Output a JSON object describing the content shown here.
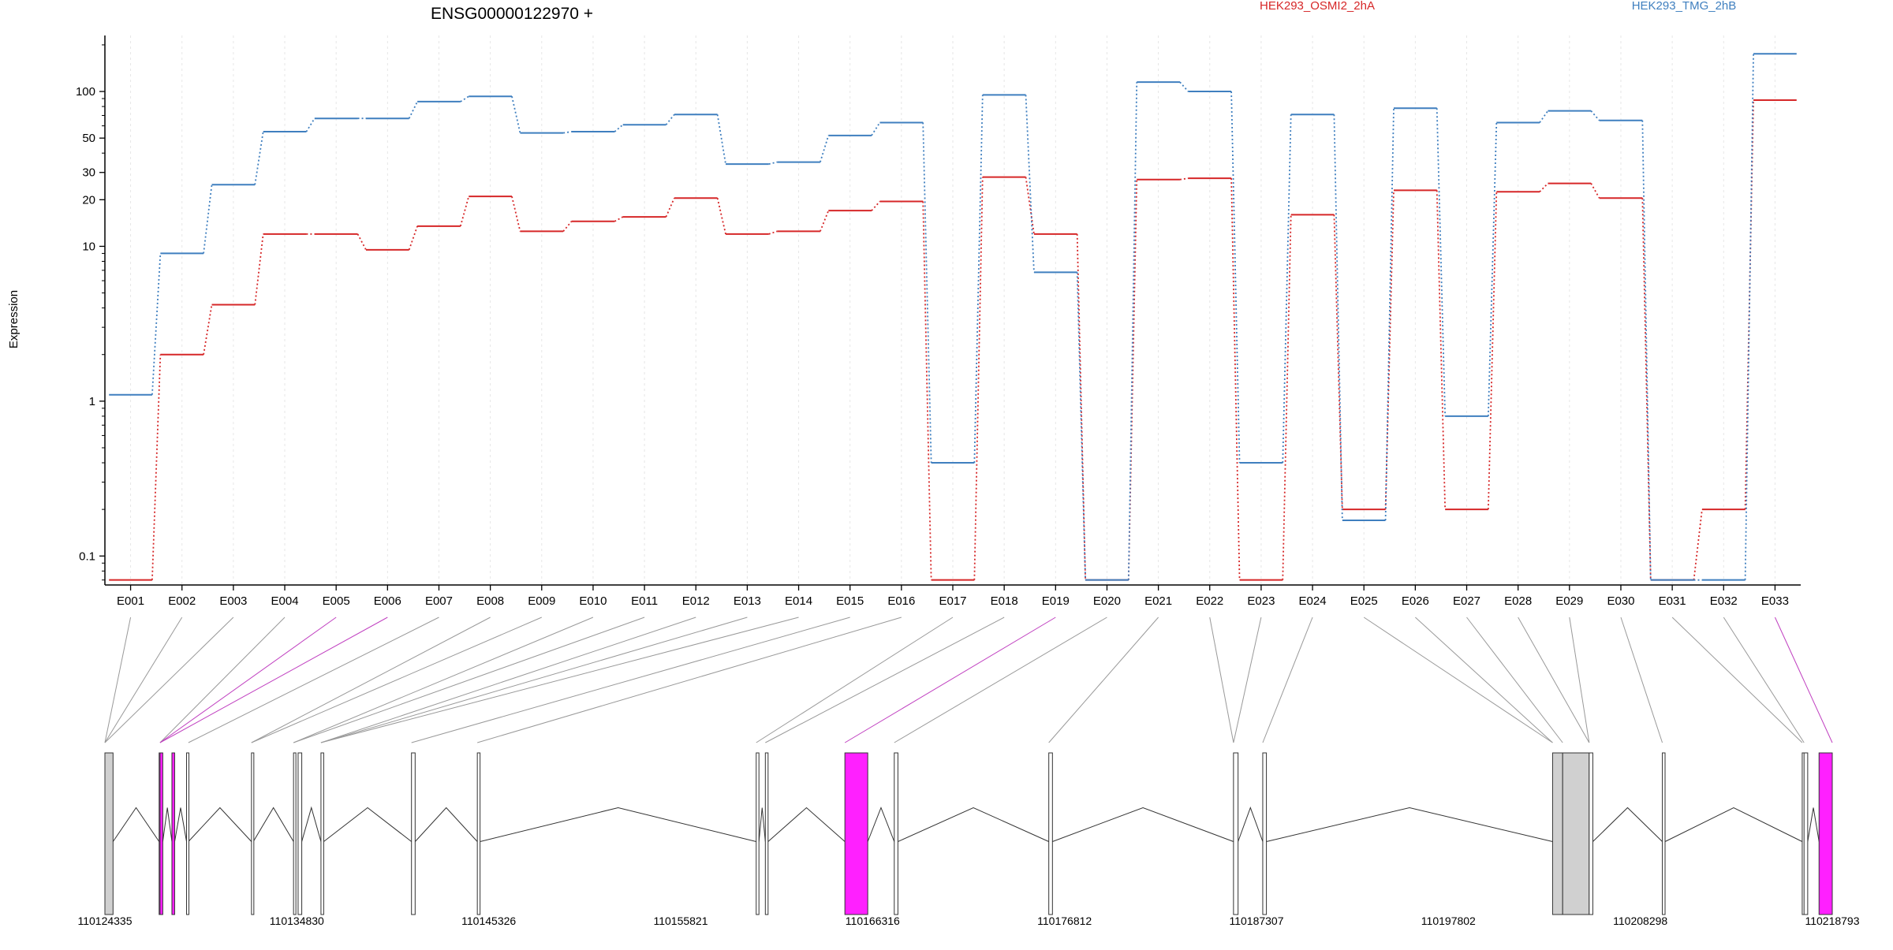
{
  "header": {
    "gene_title": "ENSG00000122970 +",
    "ylabel": "Expression"
  },
  "colors": {
    "background": "#ffffff",
    "axis": "#000000",
    "grid": "#e6e6e6",
    "connector": "#999999",
    "highlight": "#ff20ff",
    "exon_fill": "#d0d0d0",
    "exon_stroke": "#333333"
  },
  "chart_data": {
    "type": "line",
    "title": "ENSG00000122970 +",
    "xlabel": "",
    "ylabel": "Expression",
    "scale": "log",
    "ylim": [
      0.065,
      230
    ],
    "y_ticks": [
      0.1,
      1,
      10,
      20,
      30,
      50,
      100
    ],
    "y_tick_labels": [
      "0.1",
      "1",
      "10",
      "20",
      "30",
      "50",
      "100"
    ],
    "grid": "vertical",
    "legend_placement": "top",
    "categories": [
      "E001",
      "E002",
      "E003",
      "E004",
      "E005",
      "E006",
      "E007",
      "E008",
      "E009",
      "E010",
      "E011",
      "E012",
      "E013",
      "E014",
      "E015",
      "E016",
      "E017",
      "E018",
      "E019",
      "E020",
      "E021",
      "E022",
      "E023",
      "E024",
      "E025",
      "E026",
      "E027",
      "E028",
      "E029",
      "E030",
      "E031",
      "E032",
      "E033"
    ],
    "series": [
      {
        "name": "HEK293_OSMI2_2hA",
        "color": "#d62728",
        "values": [
          0.07,
          2.0,
          4.2,
          12,
          12,
          9.5,
          13.5,
          21,
          12.5,
          14.5,
          15.5,
          20.5,
          12,
          12.5,
          17,
          19.5,
          0.07,
          28,
          12,
          0.07,
          27,
          27.5,
          0.07,
          16,
          0.2,
          23,
          0.2,
          22.5,
          25.5,
          20.5,
          0.07,
          0.2,
          88
        ]
      },
      {
        "name": "HEK293_TMG_2hB",
        "color": "#3f7fbf",
        "values": [
          1.1,
          9.0,
          25,
          55,
          67,
          67,
          86,
          93,
          54,
          55,
          61,
          71,
          34,
          35,
          52,
          63,
          0.4,
          95,
          6.8,
          0.07,
          115,
          100,
          0.4,
          71,
          0.17,
          78,
          0.8,
          63,
          75,
          65,
          0.07,
          0.07,
          175
        ]
      }
    ]
  },
  "gene_model": {
    "coord_ticks": [
      "110124335",
      "110134830",
      "110145326",
      "110155821",
      "110166316",
      "110176812",
      "110187307",
      "110197802",
      "110208298",
      "110218793"
    ],
    "coord_start": 110124335,
    "coord_end": 110218793,
    "exons": [
      {
        "id": "E001",
        "start": 110124335,
        "end": 110124780,
        "highlight": false
      },
      {
        "id": "E002",
        "start": 110127300,
        "end": 110127350,
        "highlight": true
      },
      {
        "id": "E003",
        "start": 110127350,
        "end": 110127500,
        "highlight": true
      },
      {
        "id": "E004",
        "start": 110128000,
        "end": 110128150,
        "highlight": true
      },
      {
        "id": "E005",
        "start": 110128800,
        "end": 110128900,
        "highlight": false
      },
      {
        "id": "E006",
        "start": 110132350,
        "end": 110132450,
        "highlight": false
      },
      {
        "id": "E007",
        "start": 110134650,
        "end": 110134750,
        "highlight": false
      },
      {
        "id": "E008",
        "start": 110134900,
        "end": 110135100,
        "highlight": false
      },
      {
        "id": "E009",
        "start": 110136150,
        "end": 110136300,
        "highlight": false
      },
      {
        "id": "E010",
        "start": 110141100,
        "end": 110141300,
        "highlight": false
      },
      {
        "id": "E011",
        "start": 110144700,
        "end": 110144850,
        "highlight": false
      },
      {
        "id": "E012",
        "start": 110159950,
        "end": 110160100,
        "highlight": false
      },
      {
        "id": "E013",
        "start": 110160450,
        "end": 110160600,
        "highlight": false
      },
      {
        "id": "E014",
        "start": 110164800,
        "end": 110166050,
        "highlight": true
      },
      {
        "id": "E015",
        "start": 110167500,
        "end": 110167700,
        "highlight": false
      },
      {
        "id": "E016",
        "start": 110175950,
        "end": 110176150,
        "highlight": false
      },
      {
        "id": "E017",
        "start": 110186050,
        "end": 110186300,
        "highlight": false
      },
      {
        "id": "E018",
        "start": 110187650,
        "end": 110187850,
        "highlight": false
      },
      {
        "id": "E019",
        "start": 110203500,
        "end": 110204050,
        "highlight": false
      },
      {
        "id": "E020",
        "start": 110204050,
        "end": 110205500,
        "highlight": false
      },
      {
        "id": "E021",
        "start": 110205500,
        "end": 110205700,
        "highlight": false
      },
      {
        "id": "E022",
        "start": 110209500,
        "end": 110209650,
        "highlight": false
      },
      {
        "id": "E023",
        "start": 110217150,
        "end": 110217250,
        "highlight": false
      },
      {
        "id": "E024",
        "start": 110217250,
        "end": 110217450,
        "highlight": false
      },
      {
        "id": "E025",
        "start": 110218070,
        "end": 110218793,
        "highlight": true
      }
    ],
    "connectors": [
      {
        "bin": "E001",
        "to": 110124335,
        "highlight": false
      },
      {
        "bin": "E002",
        "to": 110124335,
        "highlight": false
      },
      {
        "bin": "E003",
        "to": 110124335,
        "highlight": false
      },
      {
        "bin": "E004",
        "to": 110127350,
        "highlight": false
      },
      {
        "bin": "E005",
        "to": 110127350,
        "highlight": true
      },
      {
        "bin": "E006",
        "to": 110127350,
        "highlight": true
      },
      {
        "bin": "E007",
        "to": 110128900,
        "highlight": false
      },
      {
        "bin": "E008",
        "to": 110132350,
        "highlight": false
      },
      {
        "bin": "E009",
        "to": 110132350,
        "highlight": false
      },
      {
        "bin": "E010",
        "to": 110134650,
        "highlight": false
      },
      {
        "bin": "E011",
        "to": 110134650,
        "highlight": false
      },
      {
        "bin": "E012",
        "to": 110136150,
        "highlight": false
      },
      {
        "bin": "E013",
        "to": 110136150,
        "highlight": false
      },
      {
        "bin": "E014",
        "to": 110136150,
        "highlight": false
      },
      {
        "bin": "E015",
        "to": 110141100,
        "highlight": false
      },
      {
        "bin": "E016",
        "to": 110144700,
        "highlight": false
      },
      {
        "bin": "E017",
        "to": 110159950,
        "highlight": false
      },
      {
        "bin": "E018",
        "to": 110160450,
        "highlight": false
      },
      {
        "bin": "E019",
        "to": 110164800,
        "highlight": true
      },
      {
        "bin": "E020",
        "to": 110167500,
        "highlight": false
      },
      {
        "bin": "E021",
        "to": 110175950,
        "highlight": false
      },
      {
        "bin": "E022",
        "to": 110186050,
        "highlight": false
      },
      {
        "bin": "E023",
        "to": 110186050,
        "highlight": false
      },
      {
        "bin": "E024",
        "to": 110187650,
        "highlight": false
      },
      {
        "bin": "E025",
        "to": 110203500,
        "highlight": false
      },
      {
        "bin": "E026",
        "to": 110203500,
        "highlight": false
      },
      {
        "bin": "E027",
        "to": 110204050,
        "highlight": false
      },
      {
        "bin": "E028",
        "to": 110205500,
        "highlight": false
      },
      {
        "bin": "E029",
        "to": 110205500,
        "highlight": false
      },
      {
        "bin": "E030",
        "to": 110209500,
        "highlight": false
      },
      {
        "bin": "E031",
        "to": 110217150,
        "highlight": false
      },
      {
        "bin": "E032",
        "to": 110217250,
        "highlight": false
      },
      {
        "bin": "E033",
        "to": 110218793,
        "highlight": true
      }
    ]
  }
}
